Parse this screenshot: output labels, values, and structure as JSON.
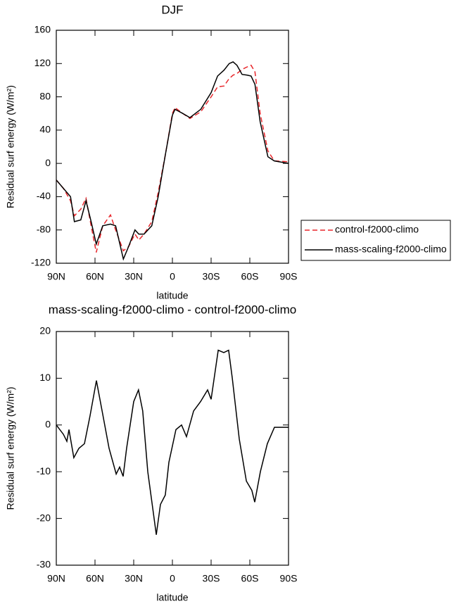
{
  "chart_data": [
    {
      "type": "line",
      "title": "DJF",
      "xlabel": "latitude",
      "ylabel": "Residual surf energy (W/m²)",
      "x": [
        90,
        84.5,
        79,
        76,
        71,
        67,
        63,
        59,
        54,
        48,
        44,
        38,
        34,
        29,
        26,
        22,
        16,
        11,
        5.5,
        0,
        -2,
        -8,
        -13.6,
        -22,
        -30,
        -35,
        -40,
        -44,
        -47,
        -50,
        -54,
        -58,
        -61,
        -64,
        -68,
        -74,
        -79,
        -90
      ],
      "series": [
        {
          "name": "control-f2000-climo",
          "color": "#e8262b",
          "dash": true,
          "values": [
            -20,
            -30,
            -45,
            -63,
            -55,
            -42,
            -75,
            -107,
            -75,
            -62,
            -80,
            -105,
            -100,
            -85,
            -92,
            -85,
            -70,
            -35,
            10,
            60,
            67,
            60,
            54,
            62,
            80,
            92,
            93,
            102,
            106,
            108,
            113,
            116,
            118,
            110,
            60,
            15,
            3,
            2
          ]
        },
        {
          "name": "mass-scaling-f2000-climo",
          "color": "#000000",
          "dash": false,
          "values": [
            -20,
            -30,
            -40,
            -70,
            -68,
            -45,
            -70,
            -97,
            -75,
            -73,
            -75,
            -115,
            -100,
            -80,
            -85,
            -85,
            -75,
            -40,
            10,
            58,
            65,
            60,
            55,
            65,
            85,
            105,
            112,
            120,
            122,
            118,
            107,
            106,
            105,
            95,
            50,
            8,
            3,
            0
          ]
        }
      ],
      "xlim": [
        90,
        -90
      ],
      "xticks": [
        {
          "value": 90,
          "label": "90N"
        },
        {
          "value": 60,
          "label": "60N"
        },
        {
          "value": 30,
          "label": "30N"
        },
        0,
        {
          "value": -30,
          "label": "30S"
        },
        {
          "value": -60,
          "label": "60S"
        },
        {
          "value": -90,
          "label": "90S"
        }
      ],
      "ylim": [
        -120,
        160
      ],
      "yticks": [
        -120,
        -80,
        -40,
        0,
        40,
        80,
        120,
        160
      ],
      "legend": "right"
    },
    {
      "type": "line",
      "title": "mass-scaling-f2000-climo - control-f2000-climo",
      "xlabel": "latitude",
      "ylabel": "Residual surf energy (W/m²)",
      "x": [
        90,
        84.5,
        81.8,
        80.2,
        76.4,
        72.5,
        68.2,
        63.8,
        58.9,
        54.5,
        49.1,
        43.6,
        40.9,
        38.2,
        35.5,
        30,
        26.3,
        23,
        19.1,
        14.7,
        12.5,
        9.3,
        5.5,
        2.7,
        -2.7,
        -7.1,
        -10.9,
        -16.4,
        -21.8,
        -27.3,
        -30,
        -35.5,
        -39.8,
        -43.6,
        -46.4,
        -51.8,
        -57.3,
        -61.6,
        -63.8,
        -68.2,
        -73.6,
        -79.1,
        -90
      ],
      "series": [
        {
          "color": "#000000",
          "dash": false,
          "values": [
            0,
            -2,
            -3.5,
            -1,
            -7,
            -5,
            -4,
            2,
            9.5,
            3,
            -5,
            -10.5,
            -9,
            -11,
            -5,
            5,
            7.5,
            3,
            -10,
            -19,
            -23.5,
            -17,
            -15,
            -8,
            -1,
            0,
            -2.5,
            3,
            5,
            7.5,
            5.5,
            16,
            15.5,
            16,
            10,
            -3,
            -12,
            -14,
            -16.5,
            -10,
            -4,
            -0.5,
            -0.5
          ]
        }
      ],
      "xlim": [
        90,
        -90
      ],
      "xticks": [
        {
          "value": 90,
          "label": "90N"
        },
        {
          "value": 60,
          "label": "60N"
        },
        {
          "value": 30,
          "label": "30N"
        },
        0,
        {
          "value": -30,
          "label": "30S"
        },
        {
          "value": -60,
          "label": "60S"
        },
        {
          "value": -90,
          "label": "90S"
        }
      ],
      "ylim": [
        -30,
        20
      ],
      "yticks": [
        -30,
        -20,
        -10,
        0,
        10,
        20
      ]
    }
  ]
}
